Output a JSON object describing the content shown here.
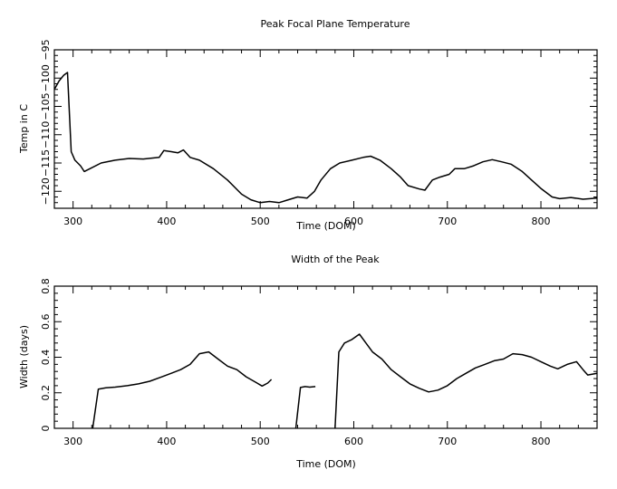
{
  "chart_data": [
    {
      "type": "line",
      "title": "Peak Focal Plane Temperature",
      "xlabel": "Time (DOM)",
      "ylabel": "Temp in C",
      "xlim": [
        280,
        860
      ],
      "ylim": [
        -123,
        -95
      ],
      "xticks": [
        300,
        400,
        500,
        600,
        700,
        800
      ],
      "yticks": [
        -120,
        -115,
        -110,
        -105,
        -100,
        -95
      ],
      "xtick_labels": [
        "300",
        "400",
        "500",
        "600",
        "700",
        "800"
      ],
      "ytick_labels": [
        "−120",
        "−115",
        "−110",
        "−105",
        "−100",
        "−95"
      ],
      "grid": false,
      "series": [
        {
          "segments": [
            [
              [
                280,
                -102
              ],
              [
                285,
                -100.5
              ],
              [
                290,
                -99.5
              ],
              [
                294,
                -99
              ],
              [
                298,
                -113
              ],
              [
                302,
                -114.5
              ],
              [
                308,
                -115.5
              ],
              [
                312,
                -116.5
              ],
              [
                318,
                -116
              ],
              [
                330,
                -115
              ],
              [
                345,
                -114.5
              ],
              [
                360,
                -114.2
              ],
              [
                375,
                -114.3
              ],
              [
                392,
                -114
              ],
              [
                397,
                -112.8
              ],
              [
                405,
                -113
              ],
              [
                412,
                -113.2
              ],
              [
                418,
                -112.7
              ],
              [
                425,
                -114
              ],
              [
                435,
                -114.5
              ],
              [
                450,
                -116
              ],
              [
                465,
                -118
              ],
              [
                480,
                -120.5
              ],
              [
                490,
                -121.5
              ],
              [
                500,
                -122
              ],
              [
                510,
                -121.8
              ],
              [
                520,
                -122
              ],
              [
                530,
                -121.5
              ],
              [
                540,
                -121
              ],
              [
                550,
                -121.2
              ],
              [
                558,
                -120
              ],
              [
                565,
                -118
              ],
              [
                575,
                -116
              ],
              [
                585,
                -115
              ],
              [
                598,
                -114.5
              ],
              [
                610,
                -114
              ],
              [
                618,
                -113.8
              ],
              [
                628,
                -114.5
              ],
              [
                640,
                -116
              ],
              [
                650,
                -117.5
              ],
              [
                658,
                -119
              ],
              [
                670,
                -119.6
              ],
              [
                676,
                -119.8
              ],
              [
                684,
                -118
              ],
              [
                692,
                -117.5
              ],
              [
                702,
                -117
              ],
              [
                708,
                -116
              ],
              [
                718,
                -116
              ],
              [
                728,
                -115.5
              ],
              [
                738,
                -114.8
              ],
              [
                748,
                -114.4
              ],
              [
                758,
                -114.8
              ],
              [
                768,
                -115.2
              ],
              [
                780,
                -116.5
              ],
              [
                790,
                -118
              ],
              [
                800,
                -119.5
              ],
              [
                812,
                -121
              ],
              [
                820,
                -121.3
              ],
              [
                832,
                -121.1
              ],
              [
                845,
                -121.4
              ],
              [
                860,
                -121.2
              ]
            ]
          ]
        }
      ]
    },
    {
      "type": "line",
      "title": "Width of the Peak",
      "xlabel": "Time (DOM)",
      "ylabel": "Width (days)",
      "xlim": [
        280,
        860
      ],
      "ylim": [
        0,
        0.8
      ],
      "xticks": [
        300,
        400,
        500,
        600,
        700,
        800
      ],
      "yticks": [
        0,
        0.2,
        0.4,
        0.6,
        0.8
      ],
      "xtick_labels": [
        "300",
        "400",
        "500",
        "600",
        "700",
        "800"
      ],
      "ytick_labels": [
        "0",
        "0.2",
        "0.4",
        "0.6",
        "0.8"
      ],
      "grid": false,
      "series": [
        {
          "segments": [
            [
              [
                321,
                0
              ],
              [
                327,
                0.22
              ],
              [
                335,
                0.228
              ],
              [
                345,
                0.232
              ],
              [
                358,
                0.24
              ],
              [
                370,
                0.25
              ],
              [
                382,
                0.265
              ],
              [
                395,
                0.29
              ],
              [
                405,
                0.31
              ],
              [
                415,
                0.33
              ],
              [
                425,
                0.36
              ],
              [
                435,
                0.42
              ],
              [
                445,
                0.43
              ],
              [
                455,
                0.39
              ],
              [
                465,
                0.35
              ],
              [
                475,
                0.33
              ],
              [
                485,
                0.29
              ],
              [
                495,
                0.26
              ],
              [
                502,
                0.238
              ],
              [
                508,
                0.255
              ],
              [
                512,
                0.275
              ]
            ],
            [
              [
                538,
                0
              ],
              [
                543,
                0.23
              ],
              [
                548,
                0.235
              ],
              [
                553,
                0.232
              ],
              [
                559,
                0.235
              ]
            ],
            [
              [
                580,
                0
              ],
              [
                584,
                0.43
              ],
              [
                590,
                0.48
              ],
              [
                598,
                0.5
              ],
              [
                606,
                0.53
              ],
              [
                613,
                0.48
              ],
              [
                620,
                0.43
              ],
              [
                630,
                0.39
              ],
              [
                640,
                0.33
              ],
              [
                650,
                0.29
              ],
              [
                660,
                0.25
              ],
              [
                670,
                0.225
              ],
              [
                680,
                0.205
              ],
              [
                690,
                0.215
              ],
              [
                700,
                0.24
              ],
              [
                710,
                0.28
              ],
              [
                720,
                0.31
              ],
              [
                730,
                0.34
              ],
              [
                740,
                0.36
              ],
              [
                750,
                0.38
              ],
              [
                760,
                0.39
              ],
              [
                770,
                0.42
              ],
              [
                780,
                0.415
              ],
              [
                790,
                0.4
              ],
              [
                800,
                0.375
              ],
              [
                810,
                0.35
              ],
              [
                818,
                0.335
              ],
              [
                828,
                0.36
              ],
              [
                838,
                0.375
              ],
              [
                845,
                0.33
              ],
              [
                850,
                0.3
              ],
              [
                860,
                0.31
              ]
            ]
          ]
        }
      ]
    }
  ]
}
